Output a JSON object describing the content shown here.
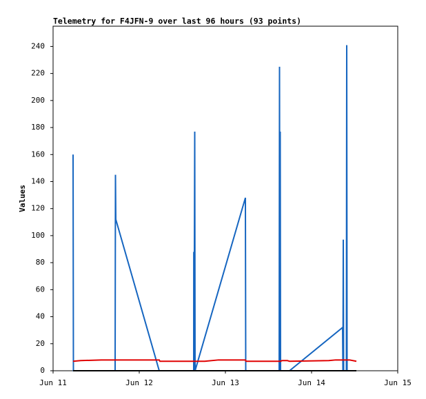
{
  "chart_data": {
    "type": "line",
    "title": "Telemetry for F4JFN-9 over last 96 hours (93 points)",
    "y_label": "Values",
    "xlim": [
      0,
      4
    ],
    "xticks": [
      {
        "value": 0,
        "label": "Jun 11"
      },
      {
        "value": 1,
        "label": "Jun 12"
      },
      {
        "value": 2,
        "label": "Jun 13"
      },
      {
        "value": 3,
        "label": "Jun 14"
      },
      {
        "value": 4,
        "label": "Jun 15"
      }
    ],
    "ylim": [
      0,
      255
    ],
    "yticks": [
      0,
      20,
      40,
      60,
      80,
      100,
      120,
      140,
      160,
      180,
      200,
      220,
      240
    ],
    "grid": false,
    "series": [
      {
        "color": "#1565c0",
        "x": [
          0.232,
          0.236,
          0.72,
          0.724,
          0.728,
          1.232,
          1.632,
          1.633,
          1.636,
          1.644,
          1.648,
          2.232,
          2.236,
          2.624,
          2.628,
          2.632,
          2.636,
          2.64,
          2.744,
          3.36,
          3.364,
          3.368,
          3.372,
          3.404,
          3.408,
          3.412
        ],
        "values": [
          160,
          0,
          0,
          145,
          112,
          0,
          0,
          88,
          0,
          177,
          0,
          128,
          0,
          0,
          225,
          0,
          177,
          0,
          0,
          32,
          0,
          97,
          0,
          0,
          241,
          0
        ]
      },
      {
        "color": "#e00000",
        "x": [
          0.232,
          0.32,
          0.56,
          1.232,
          1.24,
          1.76,
          1.92,
          2.232,
          2.24,
          2.64,
          2.656,
          2.72,
          2.744,
          3.2,
          3.28,
          3.44,
          3.52
        ],
        "values": [
          7,
          7.5,
          8,
          8,
          7,
          7,
          8,
          8,
          7,
          7,
          7.5,
          7.5,
          7,
          7.5,
          8,
          8,
          7
        ]
      },
      {
        "color": "#000000",
        "x": [
          0.232,
          3.52
        ],
        "values": [
          0,
          0
        ]
      }
    ]
  }
}
